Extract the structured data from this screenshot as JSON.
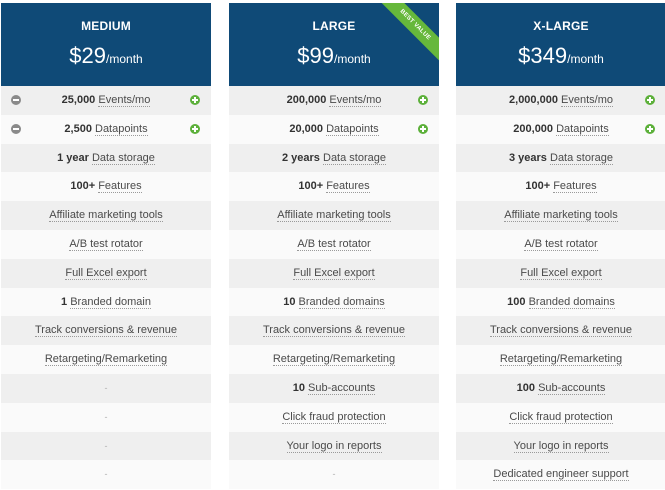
{
  "plans": [
    {
      "name": "MEDIUM",
      "price": "$29",
      "per": "/month",
      "badge": "",
      "rows": [
        {
          "bold": "25,000",
          "text": "Events/mo",
          "minus": true,
          "plus": true
        },
        {
          "bold": "2,500",
          "text": "Datapoints",
          "minus": true,
          "plus": true
        },
        {
          "bold": "1 year",
          "text": "Data storage"
        },
        {
          "bold": "100+",
          "text": "Features"
        },
        {
          "bold": "",
          "text": "Affiliate marketing tools"
        },
        {
          "bold": "",
          "text": "A/B test rotator"
        },
        {
          "bold": "",
          "text": "Full Excel export"
        },
        {
          "bold": "1",
          "text": "Branded domain"
        },
        {
          "bold": "",
          "text": "Track conversions & revenue"
        },
        {
          "bold": "",
          "text": "Retargeting/Remarketing"
        },
        {
          "dash": "-"
        },
        {
          "dash": "-"
        },
        {
          "dash": "-"
        },
        {
          "dash": "-"
        }
      ]
    },
    {
      "name": "LARGE",
      "price": "$99",
      "per": "/month",
      "badge": "BEST VALUE",
      "rows": [
        {
          "bold": "200,000",
          "text": "Events/mo",
          "plus": true
        },
        {
          "bold": "20,000",
          "text": "Datapoints",
          "plus": true
        },
        {
          "bold": "2 years",
          "text": "Data storage"
        },
        {
          "bold": "100+",
          "text": "Features"
        },
        {
          "bold": "",
          "text": "Affiliate marketing tools"
        },
        {
          "bold": "",
          "text": "A/B test rotator"
        },
        {
          "bold": "",
          "text": "Full Excel export"
        },
        {
          "bold": "10",
          "text": "Branded domains"
        },
        {
          "bold": "",
          "text": "Track conversions & revenue"
        },
        {
          "bold": "",
          "text": "Retargeting/Remarketing"
        },
        {
          "bold": "10",
          "text": "Sub-accounts"
        },
        {
          "bold": "",
          "text": "Click fraud protection"
        },
        {
          "bold": "",
          "text": "Your logo in reports"
        },
        {
          "dash": "-"
        }
      ]
    },
    {
      "name": "X-LARGE",
      "price": "$349",
      "per": "/month",
      "badge": "",
      "rows": [
        {
          "bold": "2,000,000",
          "text": "Events/mo",
          "plus": true
        },
        {
          "bold": "200,000",
          "text": "Datapoints",
          "plus": true
        },
        {
          "bold": "3 years",
          "text": "Data storage"
        },
        {
          "bold": "100+",
          "text": "Features"
        },
        {
          "bold": "",
          "text": "Affiliate marketing tools"
        },
        {
          "bold": "",
          "text": "A/B test rotator"
        },
        {
          "bold": "",
          "text": "Full Excel export"
        },
        {
          "bold": "100",
          "text": "Branded domains"
        },
        {
          "bold": "",
          "text": "Track conversions & revenue"
        },
        {
          "bold": "",
          "text": "Retargeting/Remarketing"
        },
        {
          "bold": "100",
          "text": "Sub-accounts"
        },
        {
          "bold": "",
          "text": "Click fraud protection"
        },
        {
          "bold": "",
          "text": "Your logo in reports"
        },
        {
          "bold": "",
          "text": "Dedicated engineer support"
        }
      ]
    }
  ],
  "colors": {
    "header_bg": "#0f4a77",
    "badge_bg": "#66b83b",
    "plus_icon": "#5cb03a",
    "minus_icon": "#8a8a8a"
  }
}
